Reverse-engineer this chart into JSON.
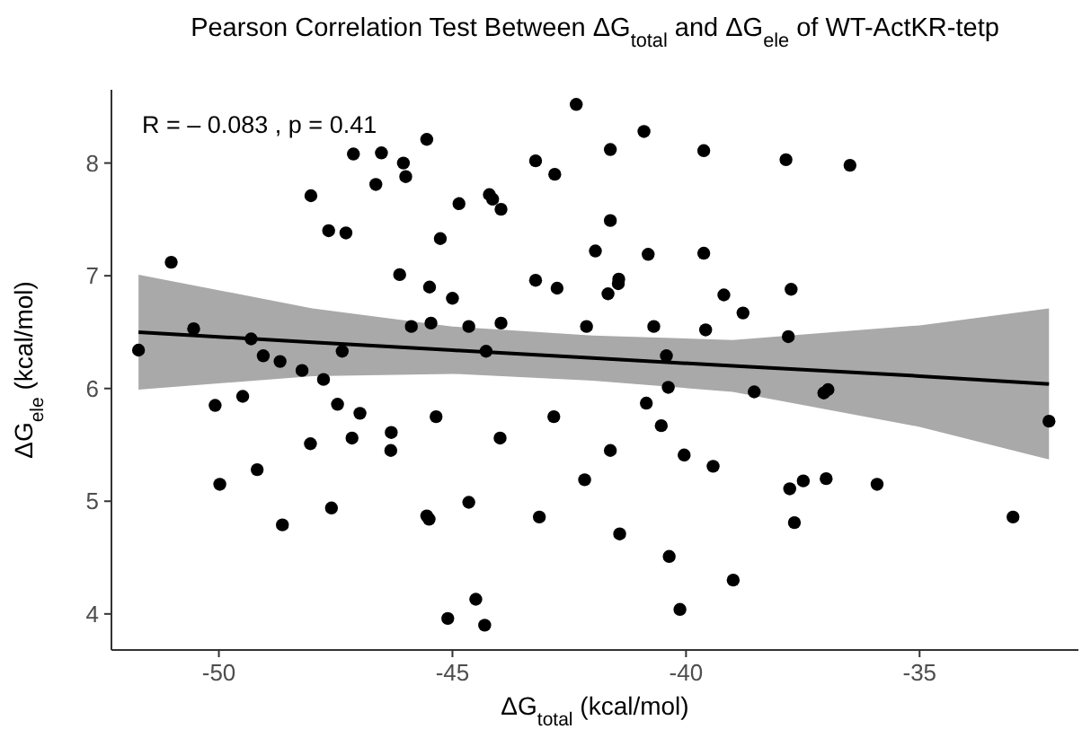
{
  "chart_data": {
    "type": "scatter",
    "title": "Pearson Correlation Test Between ΔG$_{total}$ and ΔG$_{ele}$ of WT-ActKR-tetp",
    "xlabel": "ΔG$_{total}$ (kcal/mol)",
    "ylabel": "ΔG$_{ele}$ (kcal/mol)",
    "annotations": [
      "R = – 0.083 , p = 0.41"
    ],
    "xlim": [
      -52.3,
      -31.6
    ],
    "ylim": [
      3.68,
      8.65
    ],
    "xticks": [
      -50,
      -45,
      -40,
      -35
    ],
    "yticks": [
      4,
      5,
      6,
      7,
      8
    ],
    "grid": false,
    "series": [
      {
        "color": "#000000",
        "marker": "circle",
        "x": [
          -45.55,
          -47.12,
          -46.52,
          -46.05,
          -46.0,
          -46.64,
          -48.03,
          -44.86,
          -47.65,
          -47.28,
          -45.26,
          -51.02,
          -46.13,
          -45.49,
          -45.0,
          -50.54,
          -45.88,
          -45.46,
          -44.65,
          -51.72,
          -49.31,
          -49.05,
          -48.69,
          -48.22,
          -47.76,
          -47.36,
          -50.08,
          -49.49,
          -47.46,
          -46.98,
          -45.35,
          -48.04,
          -47.15,
          -46.31,
          -46.32,
          -49.18,
          -49.98,
          -44.65,
          -47.59,
          -45.55,
          -45.5,
          -48.64,
          -45.1,
          -42.35,
          -40.9,
          -41.62,
          -39.62,
          -43.22,
          -42.81,
          -44.21,
          -44.14,
          -43.96,
          -41.62,
          -41.94,
          -40.81,
          -39.62,
          -43.22,
          -42.76,
          -41.44,
          -41.45,
          -41.67,
          -39.19,
          -38.78,
          -43.96,
          -42.13,
          -40.69,
          -39.58,
          -44.28,
          -40.42,
          -40.38,
          -38.54,
          -40.85,
          -42.83,
          -40.53,
          -43.98,
          -41.62,
          -40.04,
          -39.42,
          -42.17,
          -43.14,
          -41.42,
          -40.36,
          -38.99,
          -44.5,
          -44.31,
          -40.13,
          -37.86,
          -36.49,
          -37.75,
          -37.81,
          -37.05,
          -36.96,
          -32.23,
          -37.78,
          -37.49,
          -37.0,
          -35.91,
          -37.68,
          -33.0
        ],
        "values": [
          8.21,
          8.08,
          8.09,
          8.0,
          7.88,
          7.81,
          7.71,
          7.64,
          7.4,
          7.38,
          7.33,
          7.12,
          7.01,
          6.9,
          6.8,
          6.53,
          6.55,
          6.58,
          6.55,
          6.34,
          6.44,
          6.29,
          6.24,
          6.16,
          6.08,
          6.33,
          5.85,
          5.93,
          5.86,
          5.78,
          5.75,
          5.51,
          5.56,
          5.61,
          5.45,
          5.28,
          5.15,
          4.99,
          4.94,
          4.87,
          4.84,
          4.79,
          3.96,
          8.52,
          8.28,
          8.12,
          8.11,
          8.02,
          7.9,
          7.72,
          7.68,
          7.59,
          7.49,
          7.22,
          7.19,
          7.2,
          6.96,
          6.89,
          6.97,
          6.93,
          6.84,
          6.83,
          6.67,
          6.58,
          6.55,
          6.55,
          6.52,
          6.33,
          6.29,
          6.01,
          5.97,
          5.87,
          5.75,
          5.67,
          5.56,
          5.45,
          5.41,
          5.31,
          5.19,
          4.86,
          4.71,
          4.51,
          4.3,
          4.13,
          3.9,
          4.04,
          8.03,
          7.98,
          6.88,
          6.46,
          5.96,
          5.99,
          5.71,
          5.11,
          5.18,
          5.2,
          5.15,
          4.81,
          4.86
        ]
      },
      {
        "type": "line",
        "color": "#000000",
        "x": [
          -51.72,
          -48,
          -45,
          -42,
          -39,
          -35,
          -32.23
        ],
        "values": [
          6.5,
          6.41,
          6.34,
          6.27,
          6.2,
          6.11,
          6.04
        ],
        "lower": [
          5.99,
          6.11,
          6.13,
          6.07,
          5.97,
          5.66,
          5.37
        ],
        "upper": [
          7.01,
          6.71,
          6.55,
          6.47,
          6.43,
          6.56,
          6.71
        ]
      }
    ]
  }
}
